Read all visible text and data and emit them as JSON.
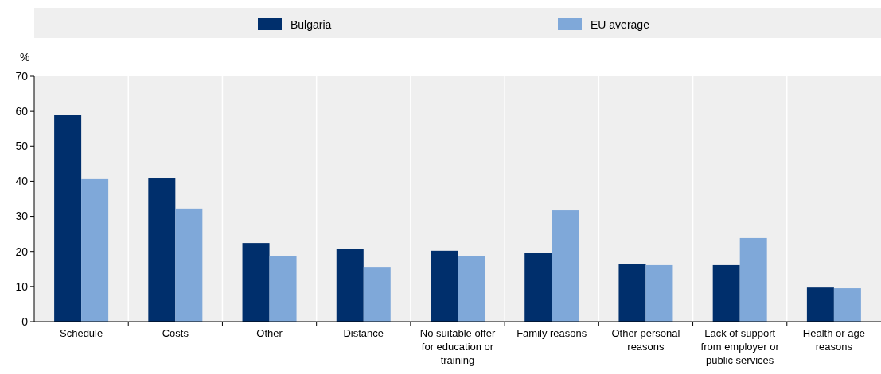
{
  "chart_data": {
    "type": "bar",
    "ylabel": "%",
    "categories": [
      "Schedule",
      "Costs",
      "Other",
      "Distance",
      "No suitable offer for education or training",
      "Family reasons",
      "Other personal reasons",
      "Lack of support from employer or public services",
      "Health or age reasons"
    ],
    "series": [
      {
        "name": "Bulgaria",
        "color": "#002f6c",
        "values": [
          58.9,
          41.0,
          22.4,
          20.8,
          20.2,
          19.5,
          16.5,
          16.1,
          9.7
        ]
      },
      {
        "name": "EU average",
        "color": "#7fa8d9",
        "values": [
          40.8,
          32.2,
          18.8,
          15.6,
          18.6,
          31.7,
          16.1,
          23.8,
          9.5
        ]
      }
    ],
    "ylim": [
      0,
      70
    ],
    "yticks": [
      0,
      10,
      20,
      30,
      40,
      50,
      60,
      70
    ],
    "grid": false,
    "legend": "top"
  }
}
